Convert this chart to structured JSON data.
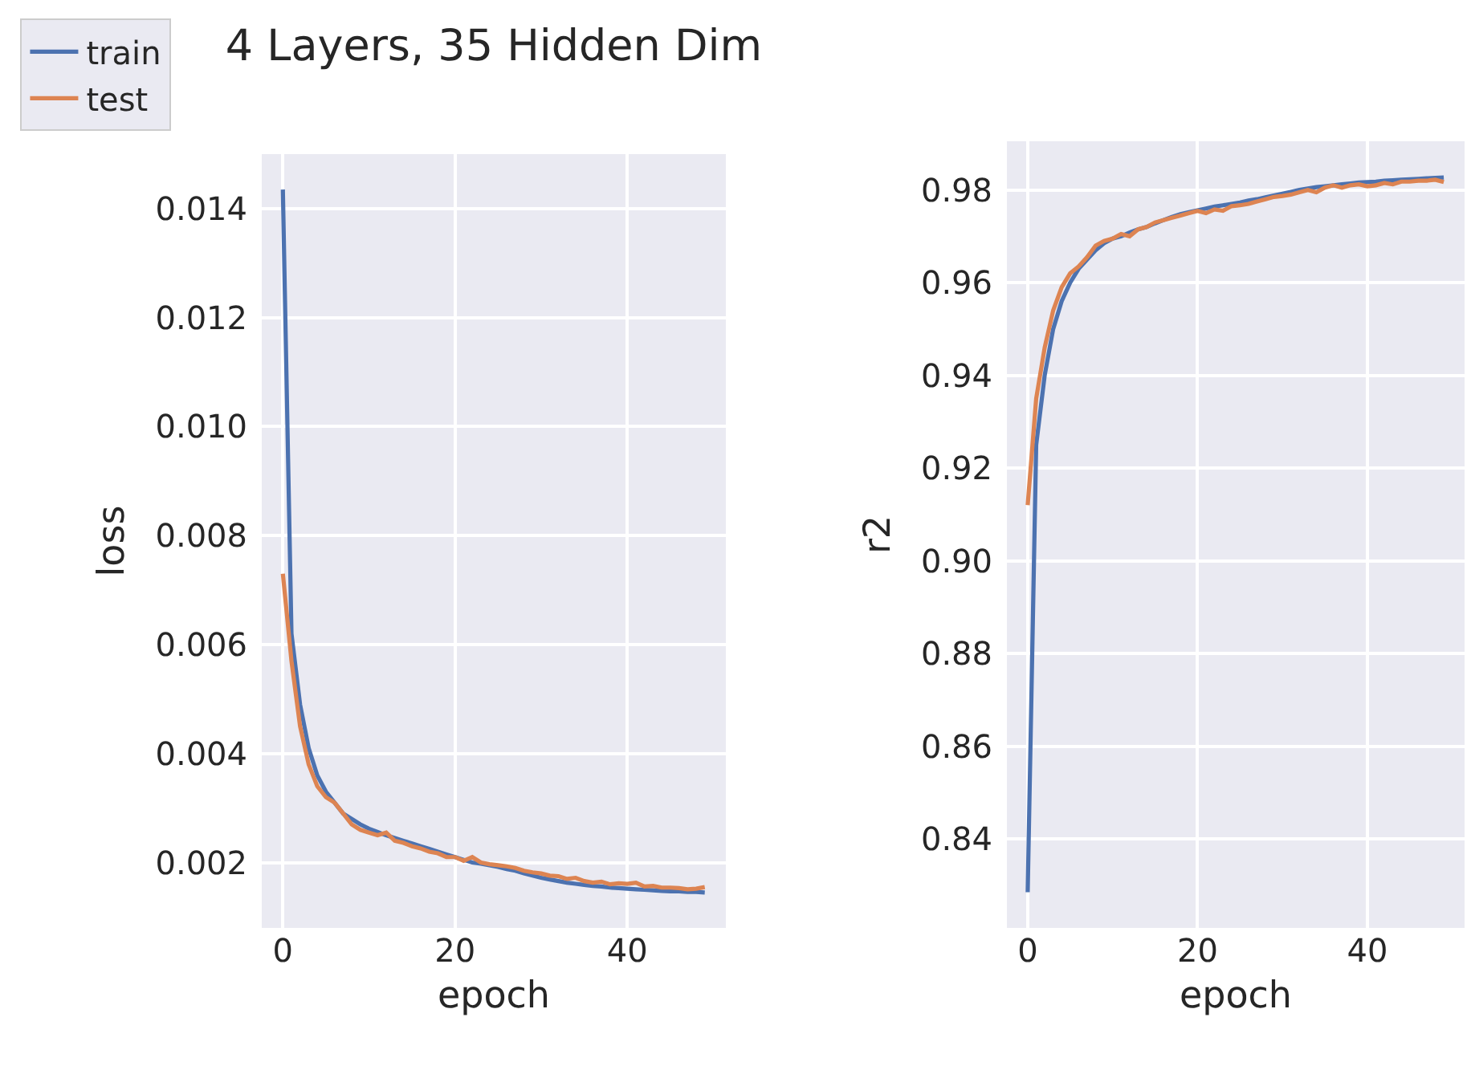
{
  "chart_data": [
    {
      "type": "line",
      "title": "4 Layers, 35 Hidden Dim",
      "xlabel": "epoch",
      "ylabel": "loss",
      "legend": "top left",
      "grid": true,
      "x": [
        0,
        1,
        2,
        3,
        4,
        5,
        6,
        7,
        8,
        9,
        10,
        11,
        12,
        13,
        14,
        15,
        16,
        17,
        18,
        19,
        20,
        21,
        22,
        23,
        24,
        25,
        26,
        27,
        28,
        29,
        30,
        31,
        32,
        33,
        34,
        35,
        36,
        37,
        38,
        39,
        40,
        41,
        42,
        43,
        44,
        45,
        46,
        47,
        48,
        49
      ],
      "xlim": [
        -2.45,
        51.45
      ],
      "xticks": [
        0,
        20,
        40
      ],
      "ylim": [
        0.0008,
        0.015
      ],
      "yticks": [
        0.002,
        0.004,
        0.006,
        0.008,
        {
          "value": 0.01,
          "label": "0.010"
        },
        0.012,
        0.014
      ],
      "series": [
        {
          "name": "train",
          "color": "#4c72b0",
          "values": [
            0.01435,
            0.0062,
            0.0049,
            0.0041,
            0.0036,
            0.0033,
            0.0031,
            0.0029,
            0.0028,
            0.0027,
            0.00262,
            0.00256,
            0.0025,
            0.00245,
            0.0024,
            0.00235,
            0.0023,
            0.00225,
            0.0022,
            0.00215,
            0.0021,
            0.00205,
            0.002,
            0.00198,
            0.00195,
            0.00192,
            0.00188,
            0.00185,
            0.0018,
            0.00176,
            0.00172,
            0.00169,
            0.00166,
            0.00163,
            0.00161,
            0.00159,
            0.00157,
            0.00156,
            0.00154,
            0.00153,
            0.00152,
            0.00151,
            0.0015,
            0.00149,
            0.00148,
            0.00147,
            0.00147,
            0.00146,
            0.00146,
            0.00145
          ]
        },
        {
          "name": "test",
          "color": "#dd8452",
          "values": [
            0.0073,
            0.0057,
            0.0045,
            0.0038,
            0.0034,
            0.0032,
            0.0031,
            0.0029,
            0.0027,
            0.0026,
            0.00255,
            0.0025,
            0.00255,
            0.0024,
            0.00236,
            0.0023,
            0.00226,
            0.0022,
            0.00217,
            0.0021,
            0.0021,
            0.00203,
            0.0021,
            0.002,
            0.00197,
            0.00195,
            0.00193,
            0.0019,
            0.00185,
            0.00182,
            0.0018,
            0.00176,
            0.00175,
            0.0017,
            0.00172,
            0.00166,
            0.00163,
            0.00165,
            0.0016,
            0.00162,
            0.00161,
            0.00163,
            0.00156,
            0.00157,
            0.00154,
            0.00154,
            0.00153,
            0.00151,
            0.00152,
            0.00155
          ]
        }
      ]
    },
    {
      "type": "line",
      "xlabel": "epoch",
      "ylabel": "r2",
      "grid": true,
      "x": [
        0,
        1,
        2,
        3,
        4,
        5,
        6,
        7,
        8,
        9,
        10,
        11,
        12,
        13,
        14,
        15,
        16,
        17,
        18,
        19,
        20,
        21,
        22,
        23,
        24,
        25,
        26,
        27,
        28,
        29,
        30,
        31,
        32,
        33,
        34,
        35,
        36,
        37,
        38,
        39,
        40,
        41,
        42,
        43,
        44,
        45,
        46,
        47,
        48,
        49
      ],
      "xlim": [
        -2.45,
        51.45
      ],
      "xticks": [
        0,
        20,
        40
      ],
      "ylim": [
        0.8208,
        0.9905
      ],
      "yticks": [
        0.84,
        0.86,
        0.88,
        {
          "value": 0.9,
          "label": "0.90"
        },
        0.92,
        0.94,
        0.96,
        0.98
      ],
      "series": [
        {
          "color": "#4c72b0",
          "values": [
            0.8285,
            0.925,
            0.94,
            0.95,
            0.956,
            0.96,
            0.963,
            0.965,
            0.967,
            0.9685,
            0.9695,
            0.97,
            0.9708,
            0.9715,
            0.972,
            0.9728,
            0.9735,
            0.9742,
            0.9748,
            0.9752,
            0.9756,
            0.976,
            0.9764,
            0.9767,
            0.977,
            0.9773,
            0.9777,
            0.978,
            0.9784,
            0.9788,
            0.9792,
            0.9796,
            0.98,
            0.9803,
            0.9806,
            0.9808,
            0.981,
            0.9812,
            0.9814,
            0.9816,
            0.9817,
            0.9818,
            0.982,
            0.9821,
            0.9822,
            0.9823,
            0.9824,
            0.9825,
            0.9826,
            0.9827
          ]
        },
        {
          "color": "#dd8452",
          "values": [
            0.912,
            0.935,
            0.946,
            0.954,
            0.959,
            0.962,
            0.9635,
            0.9655,
            0.968,
            0.969,
            0.9695,
            0.9705,
            0.97,
            0.9715,
            0.972,
            0.973,
            0.9735,
            0.974,
            0.9745,
            0.975,
            0.9755,
            0.975,
            0.9758,
            0.9755,
            0.9765,
            0.9767,
            0.977,
            0.9775,
            0.978,
            0.9785,
            0.9787,
            0.979,
            0.9795,
            0.98,
            0.9795,
            0.9805,
            0.981,
            0.9805,
            0.981,
            0.9812,
            0.9808,
            0.981,
            0.9815,
            0.9812,
            0.9818,
            0.9818,
            0.982,
            0.982,
            0.9822,
            0.9817
          ]
        }
      ]
    }
  ]
}
